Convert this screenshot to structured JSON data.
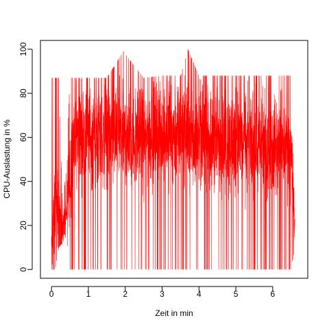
{
  "chart_data": {
    "type": "line",
    "title": "",
    "xlabel": "Zeit in min",
    "ylabel": "CPU-Auslastung in %",
    "xlim": [
      -0.3,
      6.95
    ],
    "ylim": [
      -4,
      104
    ],
    "xticks": [
      0,
      1,
      2,
      3,
      4,
      5,
      6
    ],
    "yticks": [
      0,
      20,
      40,
      60,
      80,
      100
    ],
    "grid": false,
    "legend": "none",
    "line_color": "#ff0000",
    "series": [
      {
        "name": "",
        "approximate_envelope": [
          {
            "x": 0.0,
            "min": 0,
            "max": 87,
            "typical": 5
          },
          {
            "x": 0.1,
            "min": 0,
            "max": 87,
            "typical": 30
          },
          {
            "x": 0.2,
            "min": 10,
            "max": 87,
            "typical": 20
          },
          {
            "x": 0.3,
            "min": 12,
            "max": 30,
            "typical": 18
          },
          {
            "x": 0.4,
            "min": 15,
            "max": 45,
            "typical": 25
          },
          {
            "x": 0.5,
            "min": 0,
            "max": 87,
            "typical": 40
          },
          {
            "x": 0.6,
            "min": 0,
            "max": 87,
            "typical": 62
          },
          {
            "x": 1.0,
            "min": 0,
            "max": 87,
            "typical": 60
          },
          {
            "x": 1.5,
            "min": 0,
            "max": 87,
            "typical": 60
          },
          {
            "x": 1.95,
            "min": 0,
            "max": 99,
            "typical": 60
          },
          {
            "x": 2.5,
            "min": 0,
            "max": 87,
            "typical": 60
          },
          {
            "x": 3.0,
            "min": 0,
            "max": 88,
            "typical": 62
          },
          {
            "x": 3.5,
            "min": 0,
            "max": 88,
            "typical": 62
          },
          {
            "x": 3.7,
            "min": 0,
            "max": 100,
            "typical": 62
          },
          {
            "x": 4.0,
            "min": 0,
            "max": 88,
            "typical": 60
          },
          {
            "x": 4.5,
            "min": 0,
            "max": 88,
            "typical": 58
          },
          {
            "x": 5.0,
            "min": 0,
            "max": 88,
            "typical": 58
          },
          {
            "x": 5.5,
            "min": 0,
            "max": 88,
            "typical": 57
          },
          {
            "x": 6.0,
            "min": 0,
            "max": 88,
            "typical": 56
          },
          {
            "x": 6.5,
            "min": 0,
            "max": 88,
            "typical": 55
          },
          {
            "x": 6.6,
            "min": 10,
            "max": 35,
            "typical": 18
          }
        ]
      }
    ]
  }
}
